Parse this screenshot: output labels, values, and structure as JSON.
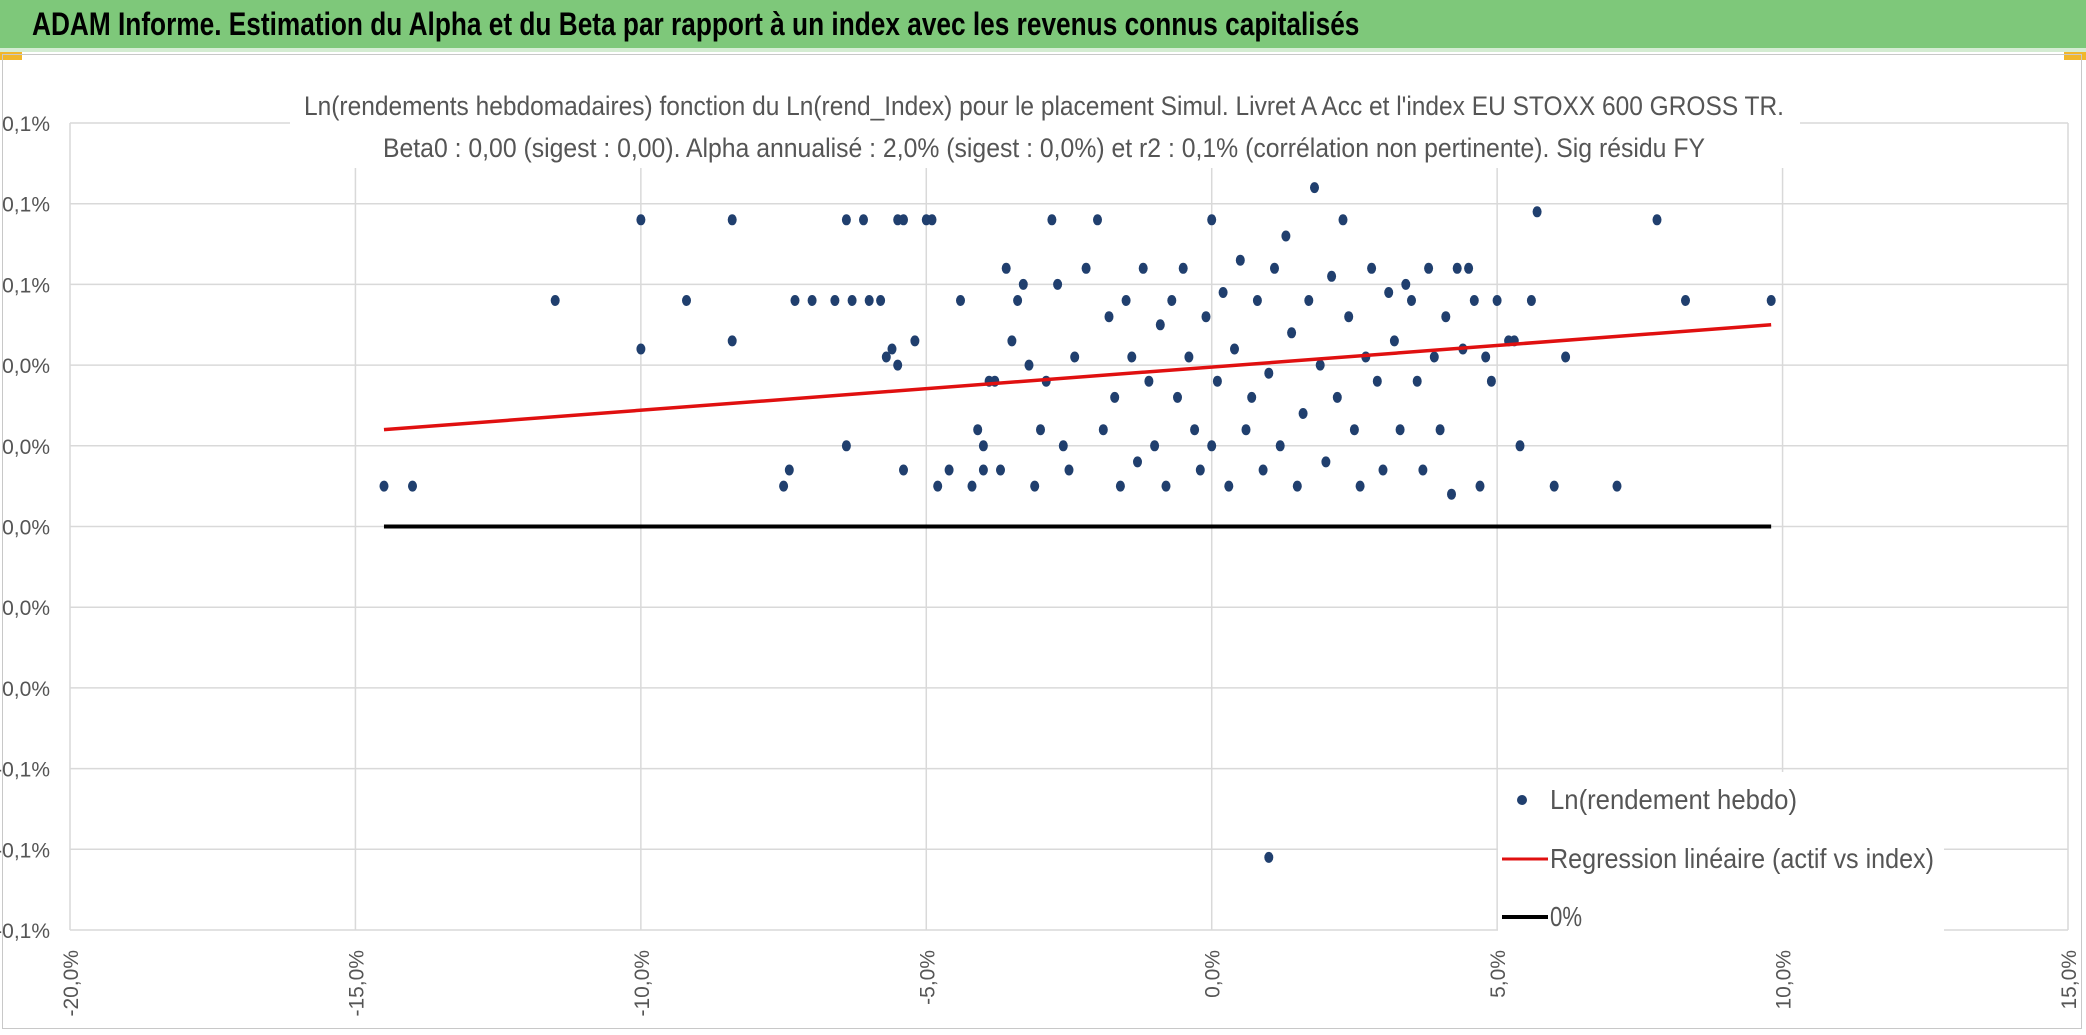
{
  "header": {
    "title": "ADAM Informe. Estimation du Alpha et du Beta par rapport à un index avec les revenus connus capitalisés"
  },
  "colors": {
    "header_bg": "#7ec87a",
    "accent": "#f1b72b",
    "points": "#203f6e",
    "regression": "#e01010",
    "zero_line": "#000000",
    "grid": "#d9d9d9"
  },
  "chart_data": {
    "type": "scatter",
    "title": "Ln(rendements hebdomadaires) fonction du Ln(rend_Index) pour le placement Simul. Livret A Acc et l'index EU STOXX 600 GROSS TR.",
    "subtitle": "Beta0 : 0,00 (sigest : 0,00). Alpha annualisé : 2,0% (sigest : 0,0%) et r2 : 0,1% (corrélation non pertinente). Sig résidu FY",
    "xlabel": "",
    "ylabel": "",
    "xlim": [
      -0.2,
      0.15
    ],
    "ylim": [
      -0.0005,
      0.0005
    ],
    "x_ticks": [
      "-20,0%",
      "-15,0%",
      "-10,0%",
      "-5,0%",
      "0,0%",
      "5,0%",
      "10,0%",
      "15,0%"
    ],
    "y_ticks": [
      "0,1%",
      "0,1%",
      "0,1%",
      "0,0%",
      "0,0%",
      "0,0%",
      "0,0%",
      "0,0%",
      "-0,1%",
      "-0,1%",
      "-0,1%"
    ],
    "grid": true,
    "legend_position": "bottom-right",
    "legend": [
      "Ln(rendement hebdo)",
      "Regression linéaire (actif vs index)",
      "0%"
    ],
    "series": [
      {
        "name": "Ln(rendement hebdo)",
        "kind": "scatter",
        "points": [
          [
            -0.145,
            5e-05
          ],
          [
            -0.14,
            5e-05
          ],
          [
            -0.115,
            0.00028
          ],
          [
            -0.1,
            0.00038
          ],
          [
            -0.1,
            0.00022
          ],
          [
            -0.092,
            0.00028
          ],
          [
            -0.084,
            0.00038
          ],
          [
            -0.084,
            0.00023
          ],
          [
            -0.075,
            5e-05
          ],
          [
            -0.074,
            7e-05
          ],
          [
            -0.073,
            0.00028
          ],
          [
            -0.07,
            0.00028
          ],
          [
            -0.066,
            0.00028
          ],
          [
            -0.064,
            0.00038
          ],
          [
            -0.064,
            0.0001
          ],
          [
            -0.063,
            0.00028
          ],
          [
            -0.061,
            0.00038
          ],
          [
            -0.06,
            0.00028
          ],
          [
            -0.058,
            0.00028
          ],
          [
            -0.055,
            0.00038
          ],
          [
            -0.054,
            0.00038
          ],
          [
            -0.057,
            0.00021
          ],
          [
            -0.056,
            0.00022
          ],
          [
            -0.055,
            0.0002
          ],
          [
            -0.054,
            7e-05
          ],
          [
            -0.052,
            0.00023
          ],
          [
            -0.05,
            0.00038
          ],
          [
            -0.049,
            0.00038
          ],
          [
            -0.048,
            5e-05
          ],
          [
            -0.046,
            7e-05
          ],
          [
            -0.044,
            0.00028
          ],
          [
            -0.042,
            5e-05
          ],
          [
            -0.041,
            0.00012
          ],
          [
            -0.04,
            0.0001
          ],
          [
            -0.04,
            7e-05
          ],
          [
            -0.039,
            0.00018
          ],
          [
            -0.038,
            0.00018
          ],
          [
            -0.037,
            7e-05
          ],
          [
            -0.036,
            0.00032
          ],
          [
            -0.035,
            0.00023
          ],
          [
            -0.034,
            0.00028
          ],
          [
            -0.033,
            0.0003
          ],
          [
            -0.032,
            0.0002
          ],
          [
            -0.031,
            5e-05
          ],
          [
            -0.03,
            0.00012
          ],
          [
            -0.029,
            0.00018
          ],
          [
            -0.028,
            0.00038
          ],
          [
            -0.027,
            0.0003
          ],
          [
            -0.026,
            0.0001
          ],
          [
            -0.025,
            7e-05
          ],
          [
            -0.024,
            0.00021
          ],
          [
            -0.022,
            0.00032
          ],
          [
            -0.02,
            0.00038
          ],
          [
            -0.019,
            0.00012
          ],
          [
            -0.018,
            0.00026
          ],
          [
            -0.017,
            0.00016
          ],
          [
            -0.016,
            5e-05
          ],
          [
            -0.015,
            0.00028
          ],
          [
            -0.014,
            0.00021
          ],
          [
            -0.013,
            8e-05
          ],
          [
            -0.012,
            0.00032
          ],
          [
            -0.011,
            0.00018
          ],
          [
            -0.01,
            0.0001
          ],
          [
            -0.009,
            0.00025
          ],
          [
            -0.008,
            5e-05
          ],
          [
            -0.007,
            0.00028
          ],
          [
            -0.006,
            0.00016
          ],
          [
            -0.005,
            0.00032
          ],
          [
            -0.004,
            0.00021
          ],
          [
            -0.003,
            0.00012
          ],
          [
            -0.002,
            7e-05
          ],
          [
            -0.001,
            0.00026
          ],
          [
            0.0,
            0.00038
          ],
          [
            0.0,
            0.0001
          ],
          [
            0.001,
            0.00018
          ],
          [
            0.002,
            0.00029
          ],
          [
            0.003,
            5e-05
          ],
          [
            0.004,
            0.00022
          ],
          [
            0.005,
            0.00033
          ],
          [
            0.006,
            0.00012
          ],
          [
            0.007,
            0.00016
          ],
          [
            0.008,
            0.00028
          ],
          [
            0.009,
            7e-05
          ],
          [
            0.01,
            0.00019
          ],
          [
            0.011,
            0.00032
          ],
          [
            0.012,
            0.0001
          ],
          [
            0.013,
            0.00036
          ],
          [
            0.014,
            0.00024
          ],
          [
            0.015,
            5e-05
          ],
          [
            0.016,
            0.00014
          ],
          [
            0.017,
            0.00028
          ],
          [
            0.018,
            0.00042
          ],
          [
            0.019,
            0.0002
          ],
          [
            0.02,
            8e-05
          ],
          [
            0.021,
            0.00031
          ],
          [
            0.022,
            0.00016
          ],
          [
            0.023,
            0.00038
          ],
          [
            0.024,
            0.00026
          ],
          [
            0.025,
            0.00012
          ],
          [
            0.026,
            5e-05
          ],
          [
            0.027,
            0.00021
          ],
          [
            0.028,
            0.00032
          ],
          [
            0.029,
            0.00018
          ],
          [
            0.03,
            7e-05
          ],
          [
            0.031,
            0.00029
          ],
          [
            0.032,
            0.00023
          ],
          [
            0.033,
            0.00012
          ],
          [
            0.034,
            0.0003
          ],
          [
            0.035,
            0.00028
          ],
          [
            0.036,
            0.00018
          ],
          [
            0.037,
            7e-05
          ],
          [
            0.038,
            0.00032
          ],
          [
            0.039,
            0.00021
          ],
          [
            0.04,
            0.00012
          ],
          [
            0.041,
            0.00026
          ],
          [
            0.042,
            4e-05
          ],
          [
            0.043,
            0.00032
          ],
          [
            0.044,
            0.00022
          ],
          [
            0.045,
            0.00032
          ],
          [
            0.046,
            0.00028
          ],
          [
            0.047,
            5e-05
          ],
          [
            0.048,
            0.00021
          ],
          [
            0.049,
            0.00018
          ],
          [
            0.05,
            0.00028
          ],
          [
            0.052,
            0.00023
          ],
          [
            0.053,
            0.00023
          ],
          [
            0.054,
            0.0001
          ],
          [
            0.056,
            0.00028
          ],
          [
            0.057,
            0.00039
          ],
          [
            0.06,
            5e-05
          ],
          [
            0.062,
            0.00021
          ],
          [
            0.071,
            5e-05
          ],
          [
            0.078,
            0.00038
          ],
          [
            0.083,
            0.00028
          ],
          [
            0.098,
            0.00028
          ],
          [
            0.01,
            -0.00041
          ]
        ]
      },
      {
        "name": "Regression linéaire (actif vs index)",
        "kind": "line",
        "x": [
          -0.145,
          0.098
        ],
        "y": [
          0.00012,
          0.00025
        ]
      },
      {
        "name": "0%",
        "kind": "line",
        "x": [
          -0.145,
          0.098
        ],
        "y": [
          0.0,
          0.0
        ]
      }
    ]
  }
}
